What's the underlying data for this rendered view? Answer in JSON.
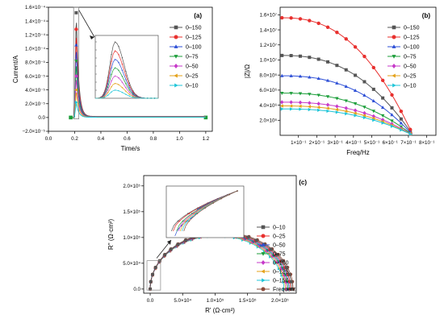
{
  "chart_data": [
    {
      "id": "a",
      "type": "line",
      "panel_label": "(a)",
      "xlabel": "Time/s",
      "ylabel": "Current/A",
      "xlim": [
        0,
        1.25
      ],
      "ylim": [
        -2e-05,
        0.00016
      ],
      "x_ticks": [
        0.0,
        0.2,
        0.4,
        0.6,
        0.8,
        1.0,
        1.2
      ],
      "x_tick_labels": [
        "0.0",
        "0.2",
        "0.4",
        "0.6",
        "0.8",
        "1.0",
        "1.2"
      ],
      "y_ticks": [
        -2e-05,
        0,
        2e-05,
        4e-05,
        6e-05,
        8e-05,
        0.0001,
        0.00012,
        0.00014,
        0.00016
      ],
      "y_tick_labels": [
        "−2.0×10⁻⁵",
        "0.0",
        "2.0×10⁻⁵",
        "4.0×10⁻⁵",
        "6.0×10⁻⁵",
        "8.0×10⁻⁵",
        "1.0×10⁻⁴",
        "1.2×10⁻⁴",
        "1.4×10⁻⁴",
        "1.6×10⁻⁴"
      ],
      "legend_position": "top-right",
      "inset": true,
      "series": [
        {
          "name": "0–150",
          "color": "#555555",
          "marker": "square",
          "peak": 0.000152
        },
        {
          "name": "0–125",
          "color": "#e8302e",
          "marker": "circle",
          "peak": 0.000128
        },
        {
          "name": "0–100",
          "color": "#2d4fd6",
          "marker": "triangle-up",
          "peak": 0.000105
        },
        {
          "name": "0–75",
          "color": "#1c9e3a",
          "marker": "triangle-down",
          "peak": 8.2e-05
        },
        {
          "name": "0–50",
          "color": "#c73ac9",
          "marker": "diamond",
          "peak": 6e-05
        },
        {
          "name": "0–25",
          "color": "#e4a21a",
          "marker": "triangle-left",
          "peak": 4e-05
        },
        {
          "name": "0–10",
          "color": "#1fc5d8",
          "marker": "triangle-right",
          "peak": 2.2e-05
        }
      ]
    },
    {
      "id": "b",
      "type": "line",
      "panel_label": "(b)",
      "xlabel": "Freq/Hz",
      "ylabel": "|Z|/Ω",
      "xlim": [
        0,
        0.85
      ],
      "ylim": [
        0,
        17000000.0
      ],
      "x_ticks": [
        0.1,
        0.2,
        0.3,
        0.4,
        0.5,
        0.6,
        0.7,
        0.8
      ],
      "x_tick_labels": [
        "1×10⁻¹",
        "2×10⁻¹",
        "3×10⁻¹",
        "4×10⁻¹",
        "5×10⁻¹",
        "6×10⁻¹",
        "7×10⁻¹",
        "8×10⁻¹"
      ],
      "y_ticks": [
        2000000.0,
        4000000.0,
        6000000.0,
        8000000.0,
        10000000.0,
        12000000.0,
        14000000.0,
        16000000.0
      ],
      "y_tick_labels": [
        "2.0×10⁶",
        "4.0×10⁶",
        "6.0×10⁶",
        "8.0×10⁶",
        "1.0×10⁷",
        "1.2×10⁷",
        "1.4×10⁷",
        "1.6×10⁷"
      ],
      "legend_position": "top-right",
      "series": [
        {
          "name": "0–150",
          "color": "#555555",
          "marker": "square",
          "start": 10600000.0
        },
        {
          "name": "0–125",
          "color": "#e8302e",
          "marker": "circle",
          "start": 15600000.0
        },
        {
          "name": "0–100",
          "color": "#2d4fd6",
          "marker": "triangle-up",
          "start": 7900000.0
        },
        {
          "name": "0–75",
          "color": "#1c9e3a",
          "marker": "triangle-down",
          "start": 5600000.0
        },
        {
          "name": "0–50",
          "color": "#c73ac9",
          "marker": "diamond",
          "start": 4400000.0
        },
        {
          "name": "0–25",
          "color": "#e4a21a",
          "marker": "triangle-left",
          "start": 3900000.0
        },
        {
          "name": "0–10",
          "color": "#1fc5d8",
          "marker": "triangle-right",
          "start": 3500000.0
        }
      ]
    },
    {
      "id": "c",
      "type": "scatter",
      "panel_label": "(c)",
      "xlabel": "R' (Ω·cm²)",
      "ylabel": "R'' (Ω·cm²)",
      "xlim": [
        -10000.0,
        225000.0
      ],
      "ylim": [
        -8000.0,
        220000.0
      ],
      "x_ticks": [
        0,
        50000.0,
        100000.0,
        150000.0,
        200000.0
      ],
      "x_tick_labels": [
        "0.0",
        "5.0×10⁴",
        "1.0×10⁵",
        "1.5×10⁵",
        "2.0×10⁵"
      ],
      "y_ticks": [
        0,
        50000.0,
        100000.0,
        150000.0,
        200000.0
      ],
      "y_tick_labels": [
        "0.0",
        "5.0×10⁴",
        "1.0×10⁵",
        "1.5×10⁵",
        "2.0×10⁵"
      ],
      "legend_position": "right",
      "inset": true,
      "series": [
        {
          "name": "0–10",
          "color": "#555555",
          "marker": "square",
          "diameter": 218000.0
        },
        {
          "name": "0–25",
          "color": "#e8302e",
          "marker": "circle",
          "diameter": 216000.0
        },
        {
          "name": "0–50",
          "color": "#2d4fd6",
          "marker": "triangle-up",
          "diameter": 214000.0
        },
        {
          "name": "0–75",
          "color": "#1c9e3a",
          "marker": "triangle-down",
          "diameter": 212000.0
        },
        {
          "name": "0–100",
          "color": "#c73ac9",
          "marker": "diamond",
          "diameter": 210000.0
        },
        {
          "name": "0–125",
          "color": "#e4a21a",
          "marker": "triangle-left",
          "diameter": 208000.0
        },
        {
          "name": "0–150",
          "color": "#1fc5d8",
          "marker": "triangle-right",
          "diameter": 206000.0
        },
        {
          "name": "Frequent",
          "color": "#8b4a3a",
          "marker": "circle",
          "diameter": 220000.0
        }
      ]
    }
  ]
}
